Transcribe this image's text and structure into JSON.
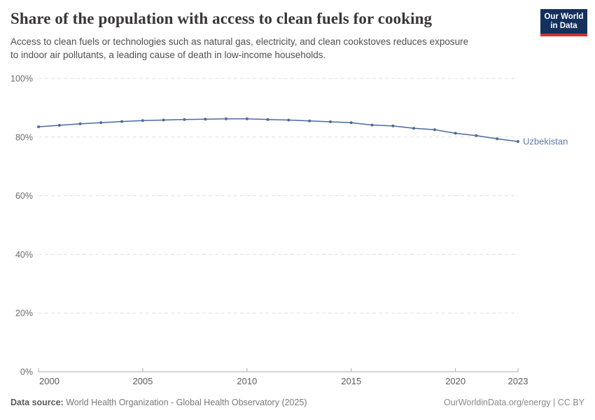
{
  "header": {
    "title": "Share of the population with access to clean fuels for cooking",
    "subtitle_lines": [
      "Access to clean fuels or technologies such as natural gas, electricity, and clean cookstoves reduces exposure",
      "to indoor air pollutants, a leading cause of death in low-income households."
    ],
    "logo": {
      "line1": "Our World",
      "line2": "in Data"
    }
  },
  "chart_data": {
    "type": "line",
    "title": "Share of the population with access to clean fuels for cooking",
    "entity": "Uzbekistan",
    "unit": "%",
    "xlabel": "",
    "ylabel": "",
    "xlim": [
      2000,
      2023
    ],
    "ylim": [
      0,
      100
    ],
    "xticks": [
      2000,
      2005,
      2010,
      2015,
      2020,
      2023
    ],
    "yticks": [
      {
        "value": 0,
        "label": "0%"
      },
      {
        "value": 20,
        "label": "20%"
      },
      {
        "value": 40,
        "label": "40%"
      },
      {
        "value": 60,
        "label": "60%"
      },
      {
        "value": 80,
        "label": "80%"
      },
      {
        "value": 100,
        "label": "100%"
      }
    ],
    "grid": "horizontal-dashed",
    "legend_position": "end-of-line-label",
    "x": [
      2000,
      2001,
      2002,
      2003,
      2004,
      2005,
      2006,
      2007,
      2008,
      2009,
      2010,
      2011,
      2012,
      2013,
      2014,
      2015,
      2016,
      2017,
      2018,
      2019,
      2020,
      2021,
      2022,
      2023
    ],
    "series": [
      {
        "name": "Uzbekistan",
        "color": "#4c6a9c",
        "values": [
          83.5,
          84.0,
          84.5,
          84.9,
          85.3,
          85.6,
          85.8,
          86.0,
          86.1,
          86.2,
          86.2,
          86.0,
          85.8,
          85.5,
          85.2,
          84.9,
          84.1,
          83.8,
          83.0,
          82.5,
          81.3,
          80.5,
          79.4,
          78.5
        ]
      }
    ]
  },
  "footer": {
    "source_label": "Data source:",
    "source_text": " World Health Organization - Global Health Observatory (2025)",
    "credit": "OurWorldinData.org/energy | CC BY"
  },
  "colors": {
    "line": "#4c6a9c",
    "entity_label": "#5b79a8",
    "logo_bg": "#14305c",
    "logo_stripe": "#d0342c",
    "grid": "#e0e0e0",
    "axis": "#a8a8a8",
    "y_tick_label": "#6b6b6b",
    "x_tick_label": "#5b5b5b"
  }
}
